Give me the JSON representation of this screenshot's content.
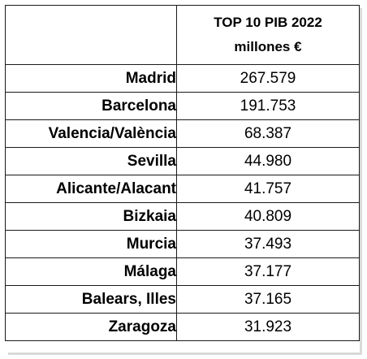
{
  "header": {
    "title_line1": "TOP 10 PIB 2022",
    "title_line2": "millones €"
  },
  "rows": [
    {
      "name": "Madrid",
      "value": "267.579"
    },
    {
      "name": "Barcelona",
      "value": "191.753"
    },
    {
      "name": "Valencia/València",
      "value": "68.387"
    },
    {
      "name": "Sevilla",
      "value": "44.980"
    },
    {
      "name": "Alicante/Alacant",
      "value": "41.757"
    },
    {
      "name": "Bizkaia",
      "value": "40.809"
    },
    {
      "name": "Murcia",
      "value": "37.493"
    },
    {
      "name": "Málaga",
      "value": "37.177"
    },
    {
      "name": "Balears, Illes",
      "value": "37.165"
    },
    {
      "name": "Zaragoza",
      "value": "31.923"
    }
  ]
}
